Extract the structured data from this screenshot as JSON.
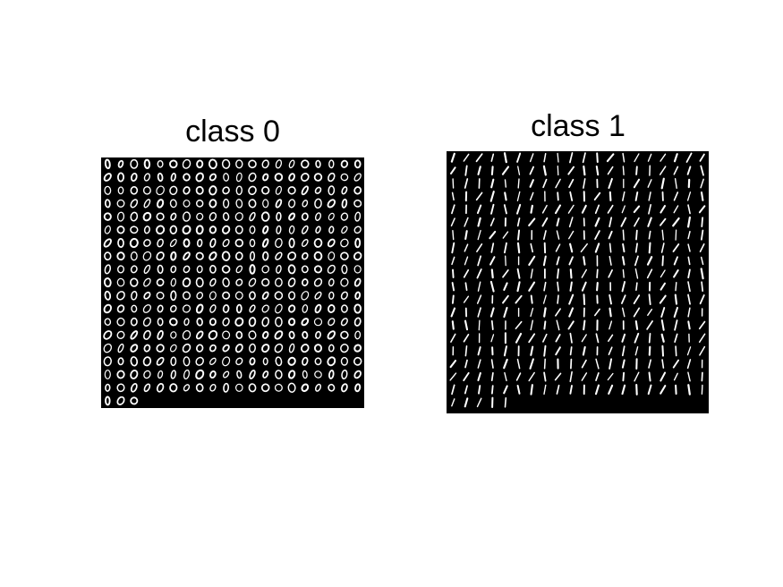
{
  "figure": {
    "panels": [
      {
        "title": "class 0",
        "digit": "0",
        "grid_columns": 20,
        "full_rows": 18,
        "partial_row_count": 3,
        "background_color": "#000000",
        "digit_color": "#ffffff"
      },
      {
        "title": "class 1",
        "digit": "1",
        "grid_columns": 20,
        "full_rows": 19,
        "partial_row_count": 5,
        "background_color": "#000000",
        "digit_color": "#ffffff"
      }
    ]
  }
}
